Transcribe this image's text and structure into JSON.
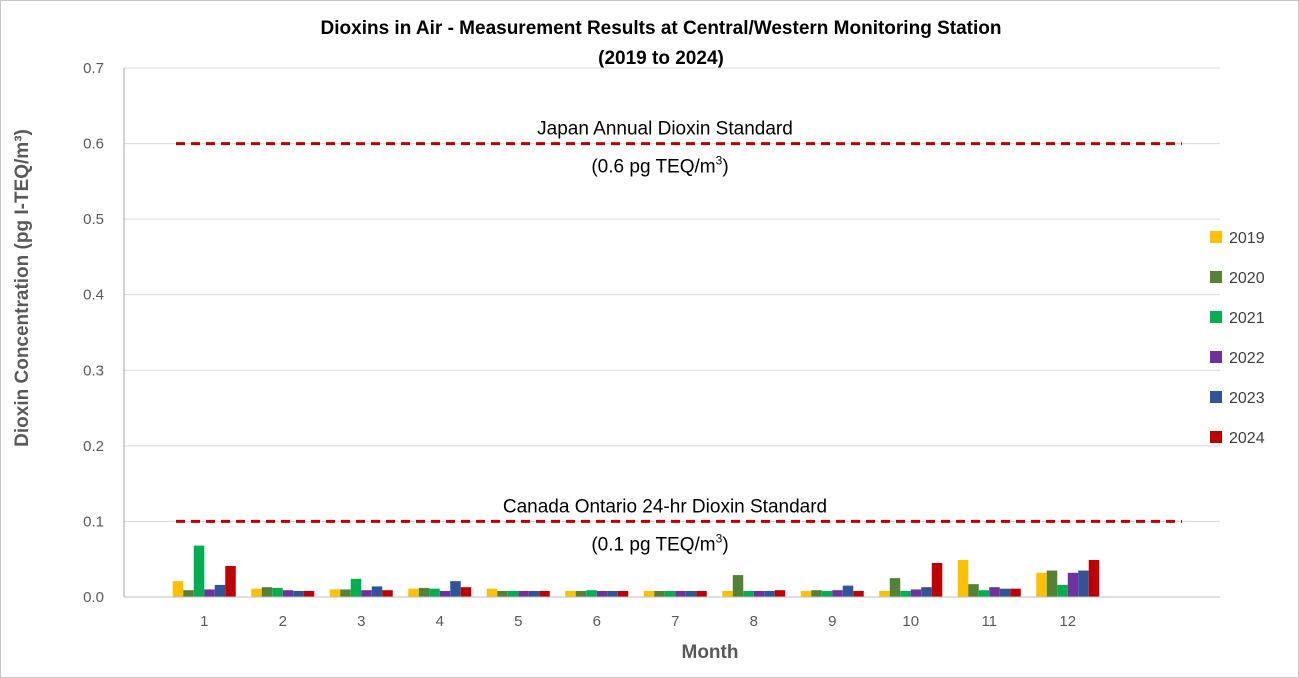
{
  "chart_data": {
    "type": "bar",
    "title": "Dioxins in Air - Measurement Results at Central/Western Monitoring Station",
    "subtitle": "(2019 to 2024)",
    "xlabel": "Month",
    "ylabel": "Dioxin Concentration (pg I-TEQ/m³)",
    "ylim": [
      0,
      0.7
    ],
    "yticks": [
      "0.0",
      "0.1",
      "0.2",
      "0.3",
      "0.4",
      "0.5",
      "0.6",
      "0.7"
    ],
    "grid": true,
    "legend_position": "right",
    "categories": [
      "1",
      "2",
      "3",
      "4",
      "5",
      "6",
      "7",
      "8",
      "9",
      "10",
      "11",
      "12"
    ],
    "series": [
      {
        "name": "2019",
        "color": "#FFC000",
        "values": [
          0.021,
          0.011,
          0.01,
          0.011,
          0.011,
          0.008,
          0.008,
          0.008,
          0.008,
          0.008,
          0.049,
          0.032
        ]
      },
      {
        "name": "2020",
        "color": "#548235",
        "values": [
          0.009,
          0.013,
          0.01,
          0.012,
          0.008,
          0.008,
          0.008,
          0.029,
          0.009,
          0.025,
          0.017,
          0.035
        ]
      },
      {
        "name": "2021",
        "color": "#00B050",
        "values": [
          0.068,
          0.012,
          0.024,
          0.011,
          0.008,
          0.009,
          0.008,
          0.008,
          0.008,
          0.008,
          0.009,
          0.016
        ]
      },
      {
        "name": "2022",
        "color": "#7030A0",
        "values": [
          0.01,
          0.009,
          0.009,
          0.008,
          0.008,
          0.008,
          0.008,
          0.008,
          0.009,
          0.01,
          0.013,
          0.032
        ]
      },
      {
        "name": "2023",
        "color": "#2F5597",
        "values": [
          0.016,
          0.008,
          0.014,
          0.021,
          0.008,
          0.008,
          0.008,
          0.008,
          0.015,
          0.013,
          0.011,
          0.035
        ]
      },
      {
        "name": "2024",
        "color": "#C00000",
        "values": [
          0.041,
          0.008,
          0.009,
          0.013,
          0.008,
          0.008,
          0.008,
          0.009,
          0.008,
          0.045,
          0.011,
          0.049
        ]
      }
    ],
    "reference_lines": [
      {
        "value": 0.6,
        "color": "#C00000",
        "label": "Japan Annual Dioxin Standard",
        "sublabel": "(0.6 pg TEQ/m",
        "sup": "3",
        "suffix": ")"
      },
      {
        "value": 0.1,
        "color": "#C00000",
        "label": "Canada Ontario 24-hr Dioxin Standard",
        "sublabel": "(0.1 pg TEQ/m",
        "sup": "3",
        "suffix": ")"
      }
    ]
  }
}
